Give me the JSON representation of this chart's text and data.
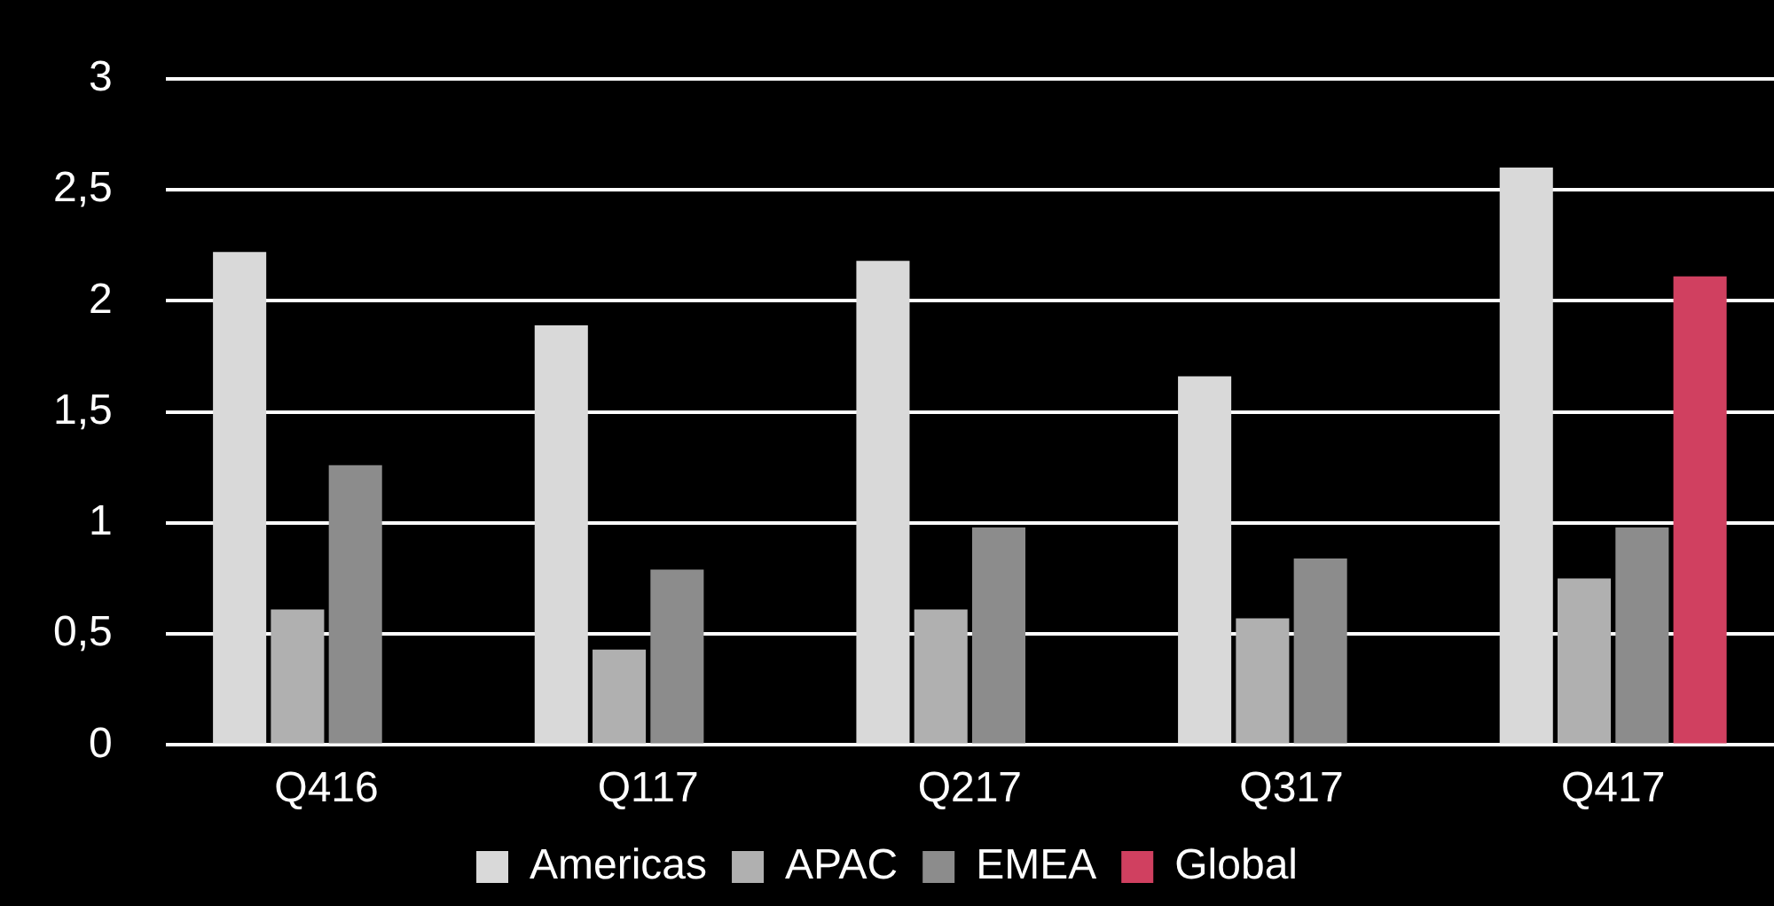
{
  "chart_data": {
    "type": "bar",
    "categories": [
      "Q416",
      "Q117",
      "Q217",
      "Q317",
      "Q417"
    ],
    "series": [
      {
        "name": "Americas",
        "color": "#d9d9d9",
        "values": [
          2.22,
          1.89,
          2.18,
          1.66,
          2.6
        ]
      },
      {
        "name": "APAC",
        "color": "#b0b0b0",
        "values": [
          0.61,
          0.43,
          0.61,
          0.57,
          0.75
        ]
      },
      {
        "name": "EMEA",
        "color": "#8c8c8c",
        "values": [
          1.26,
          0.79,
          0.98,
          0.84,
          0.98
        ]
      },
      {
        "name": "Global",
        "color": "#d04060",
        "values": [
          null,
          null,
          null,
          null,
          2.11
        ]
      }
    ],
    "ylim": [
      0,
      3
    ],
    "yticks": [
      0,
      {
        "value": 0.5,
        "label": "0,5"
      },
      1,
      {
        "value": 1.5,
        "label": "1,5"
      },
      2,
      {
        "value": 2.5,
        "label": "2,5"
      },
      3
    ],
    "grid": "y",
    "legend": "bottom"
  }
}
